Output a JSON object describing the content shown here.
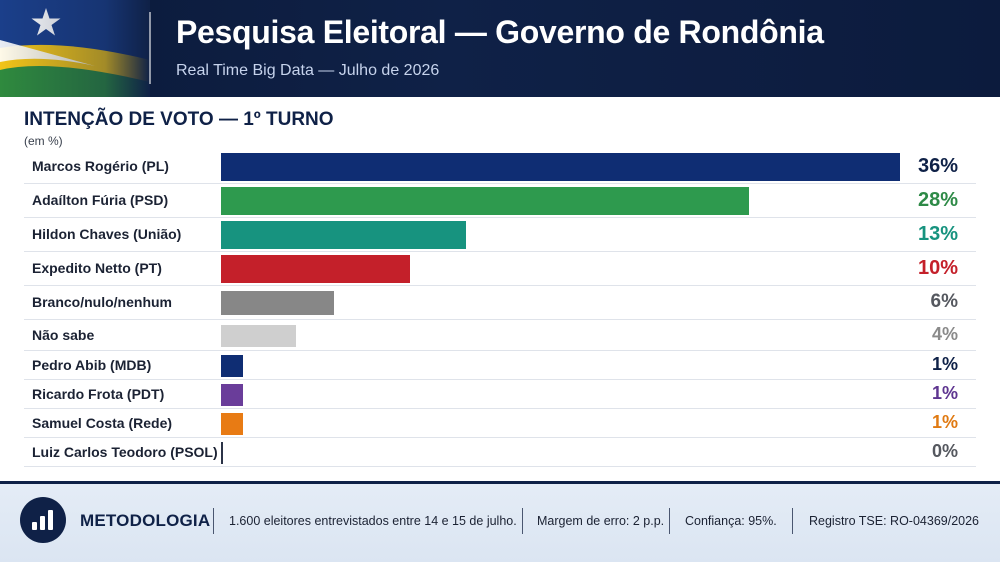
{
  "header": {
    "title": "Pesquisa Eleitoral — Governo de Rondônia",
    "subtitle": "Real Time Big Data  —  Julho de 2026"
  },
  "section": {
    "title": "INTENÇÃO DE VOTO — 1º TURNO",
    "unit": "(em %)"
  },
  "chart_data": {
    "type": "bar",
    "orientation": "horizontal",
    "title": "INTENÇÃO DE VOTO — 1º TURNO",
    "unit": "(em %)",
    "xlim": [
      0,
      36
    ],
    "grid": false,
    "categories": [
      "Marcos Rogério (PL)",
      "Adaílton Fúria (PSD)",
      "Hildon Chaves (União)",
      "Expedito Netto (PT)",
      "Branco/nulo/nenhum",
      "Não sabe",
      "Pedro Abib (MDB)",
      "Ricardo Frota (PDT)",
      "Samuel Costa (Rede)",
      "Luiz Carlos Teodoro (PSOL)"
    ],
    "values": [
      36,
      28,
      13,
      10,
      6,
      4,
      1,
      1,
      1,
      0
    ],
    "value_labels": [
      "36%",
      "28%",
      "13%",
      "10%",
      "6%",
      "4%",
      "1%",
      "1%",
      "1%",
      "0%"
    ],
    "colors": [
      "#0f2d73",
      "#2e9a4e",
      "#17937f",
      "#c4202a",
      "#878787",
      "#cfcfcf",
      "#0f2d73",
      "#6a3d9a",
      "#e87b14",
      "#2b3347"
    ],
    "label_colors": [
      "#0f2147",
      "#2e8a47",
      "#17937f",
      "#c4202a",
      "#55585f",
      "#8a8a8a",
      "#0f2147",
      "#5e3590",
      "#e07a12",
      "#55585f"
    ]
  },
  "footer": {
    "icon": "bar-chart-icon",
    "title": "METODOLOGIA",
    "sample": "1.600 eleitores entrevistados entre 14 e 15 de julho.",
    "margin": "Margem de erro: 2 p.p.",
    "confidence": "Confiança: 95%.",
    "registry": "Registro TSE: RO-04369/2026"
  }
}
